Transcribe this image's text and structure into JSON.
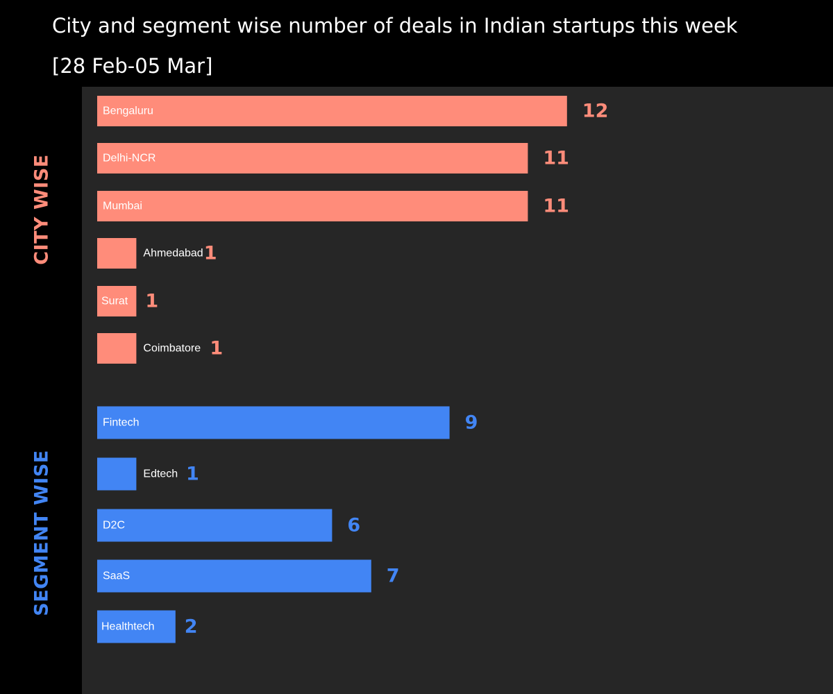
{
  "header": {
    "title_line1": "City and segment wise number of deals in Indian startups this week",
    "title_line2": "[28 Feb-05 Mar]"
  },
  "colors": {
    "background": "#000000",
    "panel": "#262626",
    "city": "#ff8c7a",
    "segment": "#4285f4"
  },
  "chart_data": [
    {
      "type": "bar",
      "orientation": "horizontal",
      "group_label": "CITY WISE",
      "categories": [
        "Bengaluru",
        "Delhi-NCR",
        "Mumbai",
        "Ahmedabad",
        "Surat",
        "Coimbatore"
      ],
      "values": [
        12,
        11,
        11,
        1,
        1,
        1
      ],
      "color": "#ff8c7a"
    },
    {
      "type": "bar",
      "orientation": "horizontal",
      "group_label": "SEGMENT WISE",
      "categories": [
        "Fintech",
        "Edtech",
        "D2C",
        "SaaS",
        "Healthtech"
      ],
      "values": [
        9,
        1,
        6,
        7,
        2
      ],
      "color": "#4285f4"
    }
  ]
}
